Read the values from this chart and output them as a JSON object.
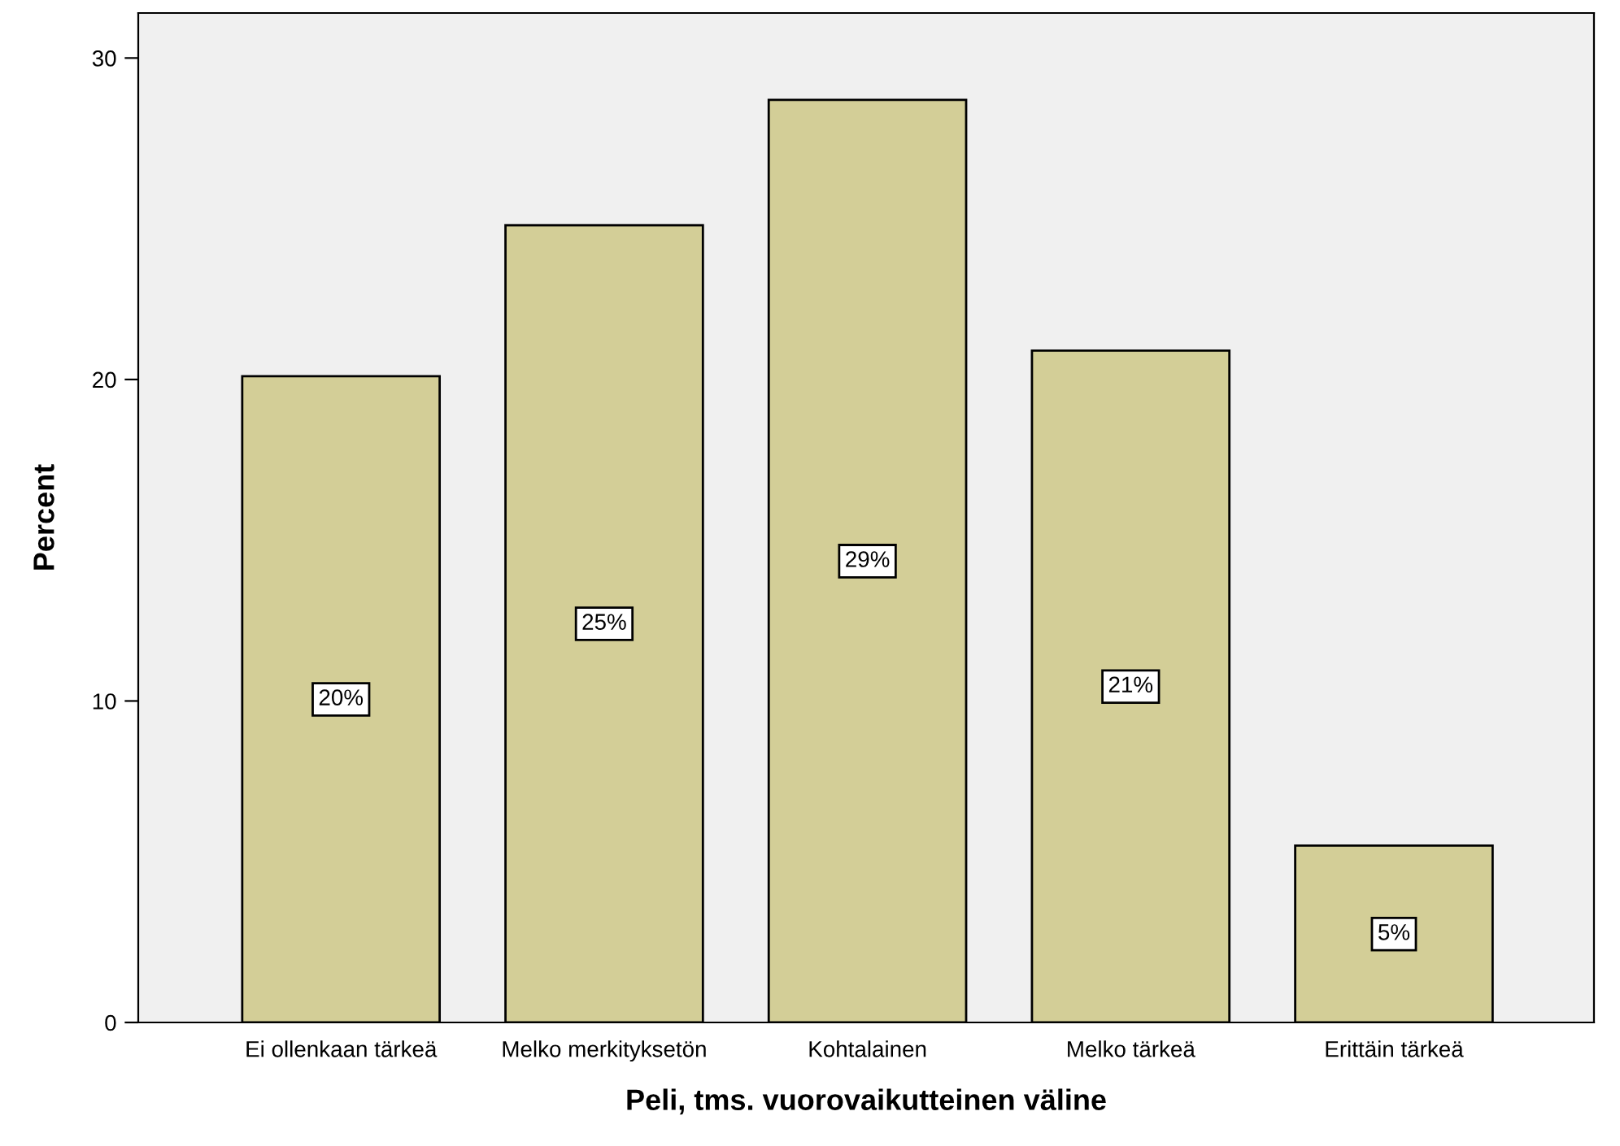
{
  "chart_data": {
    "type": "bar",
    "xlabel": "Peli, tms. vuorovaikutteinen väline",
    "ylabel": "Percent",
    "categories": [
      "Ei ollenkaan tärkeä",
      "Melko merkityksetön",
      "Kohtalainen",
      "Melko tärkeä",
      "Erittäin tärkeä"
    ],
    "values": [
      20.1,
      24.8,
      28.7,
      20.9,
      5.5
    ],
    "value_labels": [
      "20%",
      "25%",
      "29%",
      "21%",
      "5%"
    ],
    "color": "#d3ce97",
    "ylim": [
      0,
      31.4
    ],
    "yticks": [
      0,
      10,
      20,
      30
    ],
    "grid": false,
    "legend": false
  }
}
